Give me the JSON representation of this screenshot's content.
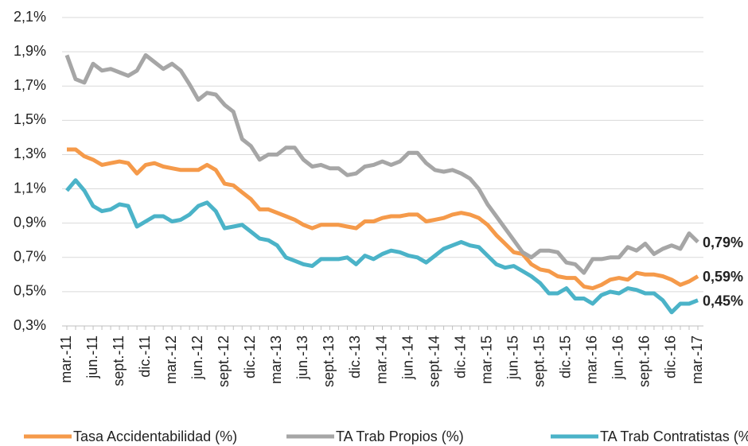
{
  "chart_data": {
    "type": "line",
    "categories": [
      "mar.-11",
      null,
      null,
      "jun.-11",
      null,
      null,
      "sept.-11",
      null,
      null,
      "dic.-11",
      null,
      null,
      "mar.-12",
      null,
      null,
      "jun.-12",
      null,
      null,
      "sept.-12",
      null,
      null,
      "dic.-12",
      null,
      null,
      "mar.-13",
      null,
      null,
      "jun.-13",
      null,
      null,
      "sept.-13",
      null,
      null,
      "dic.-13",
      null,
      null,
      "mar.-14",
      null,
      null,
      "jun.-14",
      null,
      null,
      "sept.-14",
      null,
      null,
      "dic.-14",
      null,
      null,
      "mar.-15",
      null,
      null,
      "jun.-15",
      null,
      null,
      "sept.-15",
      null,
      null,
      "dic.-15",
      null,
      null,
      "mar.-16",
      null,
      null,
      "jun.-16",
      null,
      null,
      "sept.-16",
      null,
      null,
      "dic.-16",
      null,
      null,
      "mar.-17"
    ],
    "series": [
      {
        "name": "Tasa Accidentabilidad (%)",
        "color": "#f59a4a",
        "values": [
          1.33,
          1.33,
          1.29,
          1.27,
          1.24,
          1.25,
          1.26,
          1.25,
          1.19,
          1.24,
          1.25,
          1.23,
          1.22,
          1.21,
          1.21,
          1.21,
          1.24,
          1.21,
          1.13,
          1.12,
          1.08,
          1.04,
          0.98,
          0.98,
          0.96,
          0.94,
          0.92,
          0.89,
          0.87,
          0.89,
          0.89,
          0.89,
          0.88,
          0.87,
          0.91,
          0.91,
          0.93,
          0.94,
          0.94,
          0.95,
          0.95,
          0.91,
          0.92,
          0.93,
          0.95,
          0.96,
          0.95,
          0.93,
          0.89,
          0.83,
          0.78,
          0.73,
          0.72,
          0.66,
          0.63,
          0.62,
          0.59,
          0.58,
          0.58,
          0.53,
          0.52,
          0.54,
          0.57,
          0.58,
          0.57,
          0.61,
          0.6,
          0.6,
          0.59,
          0.57,
          0.54,
          0.56,
          0.59
        ],
        "value_labels": [
          null,
          null,
          null,
          null,
          null,
          null,
          null,
          null,
          null,
          null,
          null,
          null,
          null,
          null,
          null,
          null,
          null,
          null,
          null,
          null,
          null,
          null,
          null,
          null,
          null,
          null,
          null,
          null,
          null,
          null,
          null,
          null,
          null,
          null,
          null,
          null,
          null,
          null,
          null,
          null,
          null,
          null,
          null,
          null,
          null,
          null,
          null,
          null,
          null,
          null,
          null,
          null,
          null,
          null,
          null,
          null,
          null,
          null,
          null,
          null,
          null,
          null,
          null,
          null,
          null,
          null,
          null,
          null,
          null,
          null,
          null,
          null,
          "0,59%"
        ]
      },
      {
        "name": "TA Trab Propios (%)",
        "color": "#a6a6a6",
        "values": [
          1.88,
          1.74,
          1.72,
          1.83,
          1.79,
          1.8,
          1.78,
          1.76,
          1.79,
          1.88,
          1.84,
          1.8,
          1.83,
          1.79,
          1.71,
          1.62,
          1.66,
          1.65,
          1.59,
          1.55,
          1.39,
          1.35,
          1.27,
          1.3,
          1.3,
          1.34,
          1.34,
          1.27,
          1.23,
          1.24,
          1.22,
          1.22,
          1.18,
          1.19,
          1.23,
          1.24,
          1.26,
          1.24,
          1.26,
          1.31,
          1.31,
          1.25,
          1.21,
          1.2,
          1.21,
          1.19,
          1.16,
          1.1,
          1.01,
          0.94,
          0.87,
          0.8,
          0.73,
          0.7,
          0.74,
          0.74,
          0.73,
          0.67,
          0.66,
          0.61,
          0.69,
          0.69,
          0.7,
          0.7,
          0.76,
          0.74,
          0.78,
          0.72,
          0.75,
          0.77,
          0.75,
          0.84,
          0.79
        ],
        "value_labels": [
          null,
          null,
          null,
          null,
          null,
          null,
          null,
          null,
          null,
          null,
          null,
          null,
          null,
          null,
          null,
          null,
          null,
          null,
          null,
          null,
          null,
          null,
          null,
          null,
          null,
          null,
          null,
          null,
          null,
          null,
          null,
          null,
          null,
          null,
          null,
          null,
          null,
          null,
          null,
          null,
          null,
          null,
          null,
          null,
          null,
          null,
          null,
          null,
          null,
          null,
          null,
          null,
          null,
          null,
          null,
          null,
          null,
          null,
          null,
          null,
          null,
          null,
          null,
          null,
          null,
          null,
          null,
          null,
          null,
          null,
          null,
          null,
          "0,79%"
        ]
      },
      {
        "name": "TA Trab Contratistas (%)",
        "color": "#4bb3c8",
        "values": [
          1.09,
          1.15,
          1.09,
          1.0,
          0.97,
          0.98,
          1.01,
          1.0,
          0.88,
          0.91,
          0.94,
          0.94,
          0.91,
          0.92,
          0.95,
          1.0,
          1.02,
          0.97,
          0.87,
          0.88,
          0.89,
          0.85,
          0.81,
          0.8,
          0.77,
          0.7,
          0.68,
          0.66,
          0.65,
          0.69,
          0.69,
          0.69,
          0.7,
          0.66,
          0.71,
          0.69,
          0.72,
          0.74,
          0.73,
          0.71,
          0.7,
          0.67,
          0.71,
          0.75,
          0.77,
          0.79,
          0.77,
          0.76,
          0.71,
          0.66,
          0.64,
          0.65,
          0.62,
          0.59,
          0.55,
          0.49,
          0.49,
          0.52,
          0.46,
          0.46,
          0.43,
          0.48,
          0.5,
          0.49,
          0.52,
          0.51,
          0.49,
          0.49,
          0.45,
          0.38,
          0.43,
          0.43,
          0.45
        ],
        "value_labels": [
          null,
          null,
          null,
          null,
          null,
          null,
          null,
          null,
          null,
          null,
          null,
          null,
          null,
          null,
          null,
          null,
          null,
          null,
          null,
          null,
          null,
          null,
          null,
          null,
          null,
          null,
          null,
          null,
          null,
          null,
          null,
          null,
          null,
          null,
          null,
          null,
          null,
          null,
          null,
          null,
          null,
          null,
          null,
          null,
          null,
          null,
          null,
          null,
          null,
          null,
          null,
          null,
          null,
          null,
          null,
          null,
          null,
          null,
          null,
          null,
          null,
          null,
          null,
          null,
          null,
          null,
          null,
          null,
          null,
          null,
          null,
          null,
          "0,45%"
        ]
      }
    ],
    "ylim": [
      0.3,
      2.1
    ],
    "yticks": [
      {
        "value": 0.3,
        "label": "0,3%"
      },
      {
        "value": 0.5,
        "label": "0,5%"
      },
      {
        "value": 0.7,
        "label": "0,7%"
      },
      {
        "value": 0.9,
        "label": "0,9%"
      },
      {
        "value": 1.1,
        "label": "1,1%"
      },
      {
        "value": 1.3,
        "label": "1,3%"
      },
      {
        "value": 1.5,
        "label": "1,5%"
      },
      {
        "value": 1.7,
        "label": "1,7%"
      },
      {
        "value": 1.9,
        "label": "1,9%"
      },
      {
        "value": 2.1,
        "label": "2,1%"
      }
    ],
    "grid": true,
    "legend": "bottom"
  }
}
